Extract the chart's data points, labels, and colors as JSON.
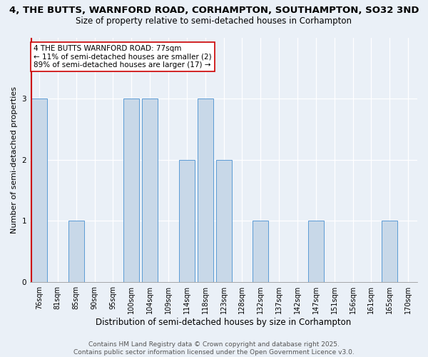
{
  "title_line1": "4, THE BUTTS, WARNFORD ROAD, CORHAMPTON, SOUTHAMPTON, SO32 3ND",
  "title_line2": "Size of property relative to semi-detached houses in Corhampton",
  "xlabel": "Distribution of semi-detached houses by size in Corhampton",
  "ylabel": "Number of semi-detached properties",
  "categories": [
    "76sqm",
    "81sqm",
    "85sqm",
    "90sqm",
    "95sqm",
    "100sqm",
    "104sqm",
    "109sqm",
    "114sqm",
    "118sqm",
    "123sqm",
    "128sqm",
    "132sqm",
    "137sqm",
    "142sqm",
    "147sqm",
    "151sqm",
    "156sqm",
    "161sqm",
    "165sqm",
    "170sqm"
  ],
  "values": [
    3,
    0,
    1,
    0,
    0,
    3,
    3,
    0,
    2,
    3,
    2,
    0,
    1,
    0,
    0,
    1,
    0,
    0,
    0,
    1,
    0
  ],
  "bar_color": "#c8d8e8",
  "bar_edge_color": "#5b9bd5",
  "highlight_index": 0,
  "highlight_line_color": "#cc0000",
  "annotation_text": "4 THE BUTTS WARNFORD ROAD: 77sqm\n← 11% of semi-detached houses are smaller (2)\n89% of semi-detached houses are larger (17) →",
  "annotation_box_color": "#ffffff",
  "annotation_box_edge": "#cc0000",
  "ylim": [
    0,
    4
  ],
  "yticks": [
    0,
    1,
    2,
    3,
    4
  ],
  "footer_text": "Contains HM Land Registry data © Crown copyright and database right 2025.\nContains public sector information licensed under the Open Government Licence v3.0.",
  "bg_color": "#eaf0f7",
  "plot_bg_color": "#eaf0f7",
  "title_fontsize": 9.5,
  "subtitle_fontsize": 8.5,
  "axis_label_fontsize": 8,
  "tick_fontsize": 7,
  "footer_fontsize": 6.5,
  "annotation_fontsize": 7.5
}
